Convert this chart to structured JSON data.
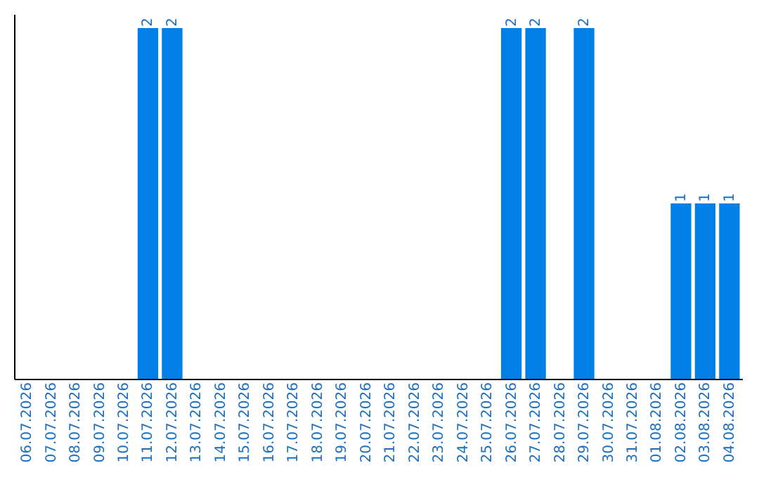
{
  "chart_data": {
    "type": "bar",
    "categories": [
      "06.07.2026",
      "07.07.2026",
      "08.07.2026",
      "09.07.2026",
      "10.07.2026",
      "11.07.2026",
      "12.07.2026",
      "13.07.2026",
      "14.07.2026",
      "15.07.2026",
      "16.07.2026",
      "17.07.2026",
      "18.07.2026",
      "19.07.2026",
      "20.07.2026",
      "21.07.2026",
      "22.07.2026",
      "23.07.2026",
      "24.07.2026",
      "25.07.2026",
      "26.07.2026",
      "27.07.2026",
      "28.07.2026",
      "29.07.2026",
      "30.07.2026",
      "31.07.2026",
      "01.08.2026",
      "02.08.2026",
      "03.08.2026",
      "04.08.2026"
    ],
    "values": [
      0,
      0,
      0,
      0,
      0,
      2,
      2,
      0,
      0,
      0,
      0,
      0,
      0,
      0,
      0,
      0,
      0,
      0,
      0,
      0,
      2,
      2,
      0,
      2,
      0,
      0,
      0,
      1,
      1,
      1
    ],
    "value_labels": [
      null,
      null,
      null,
      null,
      null,
      "2",
      "2",
      null,
      null,
      null,
      null,
      null,
      null,
      null,
      null,
      null,
      null,
      null,
      null,
      null,
      "2",
      "2",
      null,
      "2",
      null,
      null,
      null,
      "1",
      "1",
      "1"
    ],
    "color": "#0080e6",
    "tick_labels": "x",
    "grid": false
  }
}
